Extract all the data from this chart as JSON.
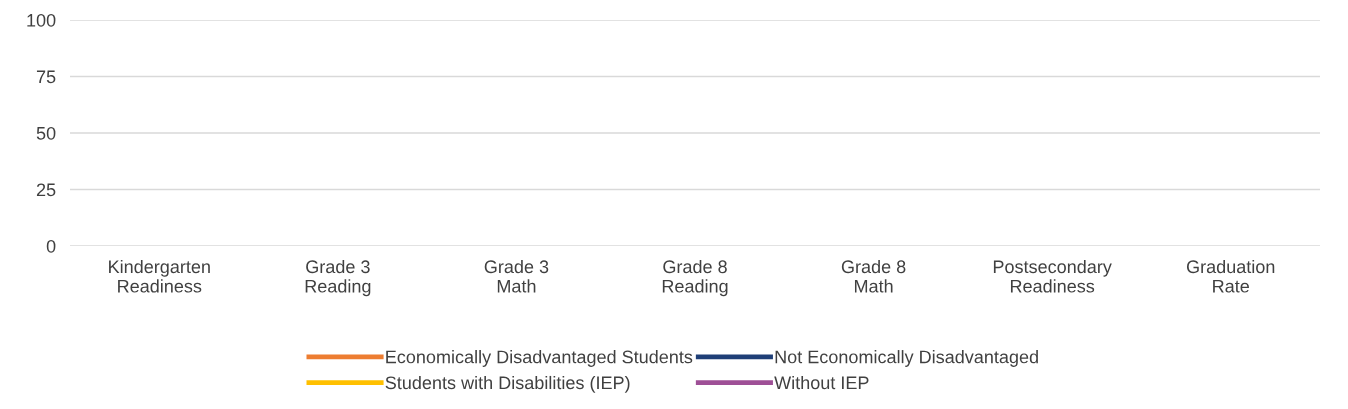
{
  "chart_data": {
    "type": "line",
    "categories": [
      "Kindergarten\nReadiness",
      "Grade 3\nReading",
      "Grade 3\nMath",
      "Grade 8\nReading",
      "Grade 8\nMath",
      "Postsecondary\nReadiness",
      "Graduation\nRate"
    ],
    "series": [
      {
        "name": "Economically Disadvantaged Students",
        "color": "#ed7d31",
        "values": [
          null,
          null,
          null,
          null,
          null,
          null,
          null
        ]
      },
      {
        "name": "Not Economically Disadvantaged",
        "color": "#1f3f77",
        "values": [
          null,
          null,
          null,
          null,
          null,
          null,
          null
        ]
      },
      {
        "name": "Students with Disabilities (IEP)",
        "color": "#ffc000",
        "values": [
          null,
          null,
          null,
          null,
          null,
          null,
          null
        ]
      },
      {
        "name": "Without IEP",
        "color": "#9e4f96",
        "values": [
          null,
          null,
          null,
          null,
          null,
          null,
          null
        ]
      }
    ],
    "ylim": [
      0,
      100
    ],
    "yticks": [
      0,
      25,
      50,
      75,
      100
    ],
    "grid": "y",
    "legend": "bottom"
  }
}
